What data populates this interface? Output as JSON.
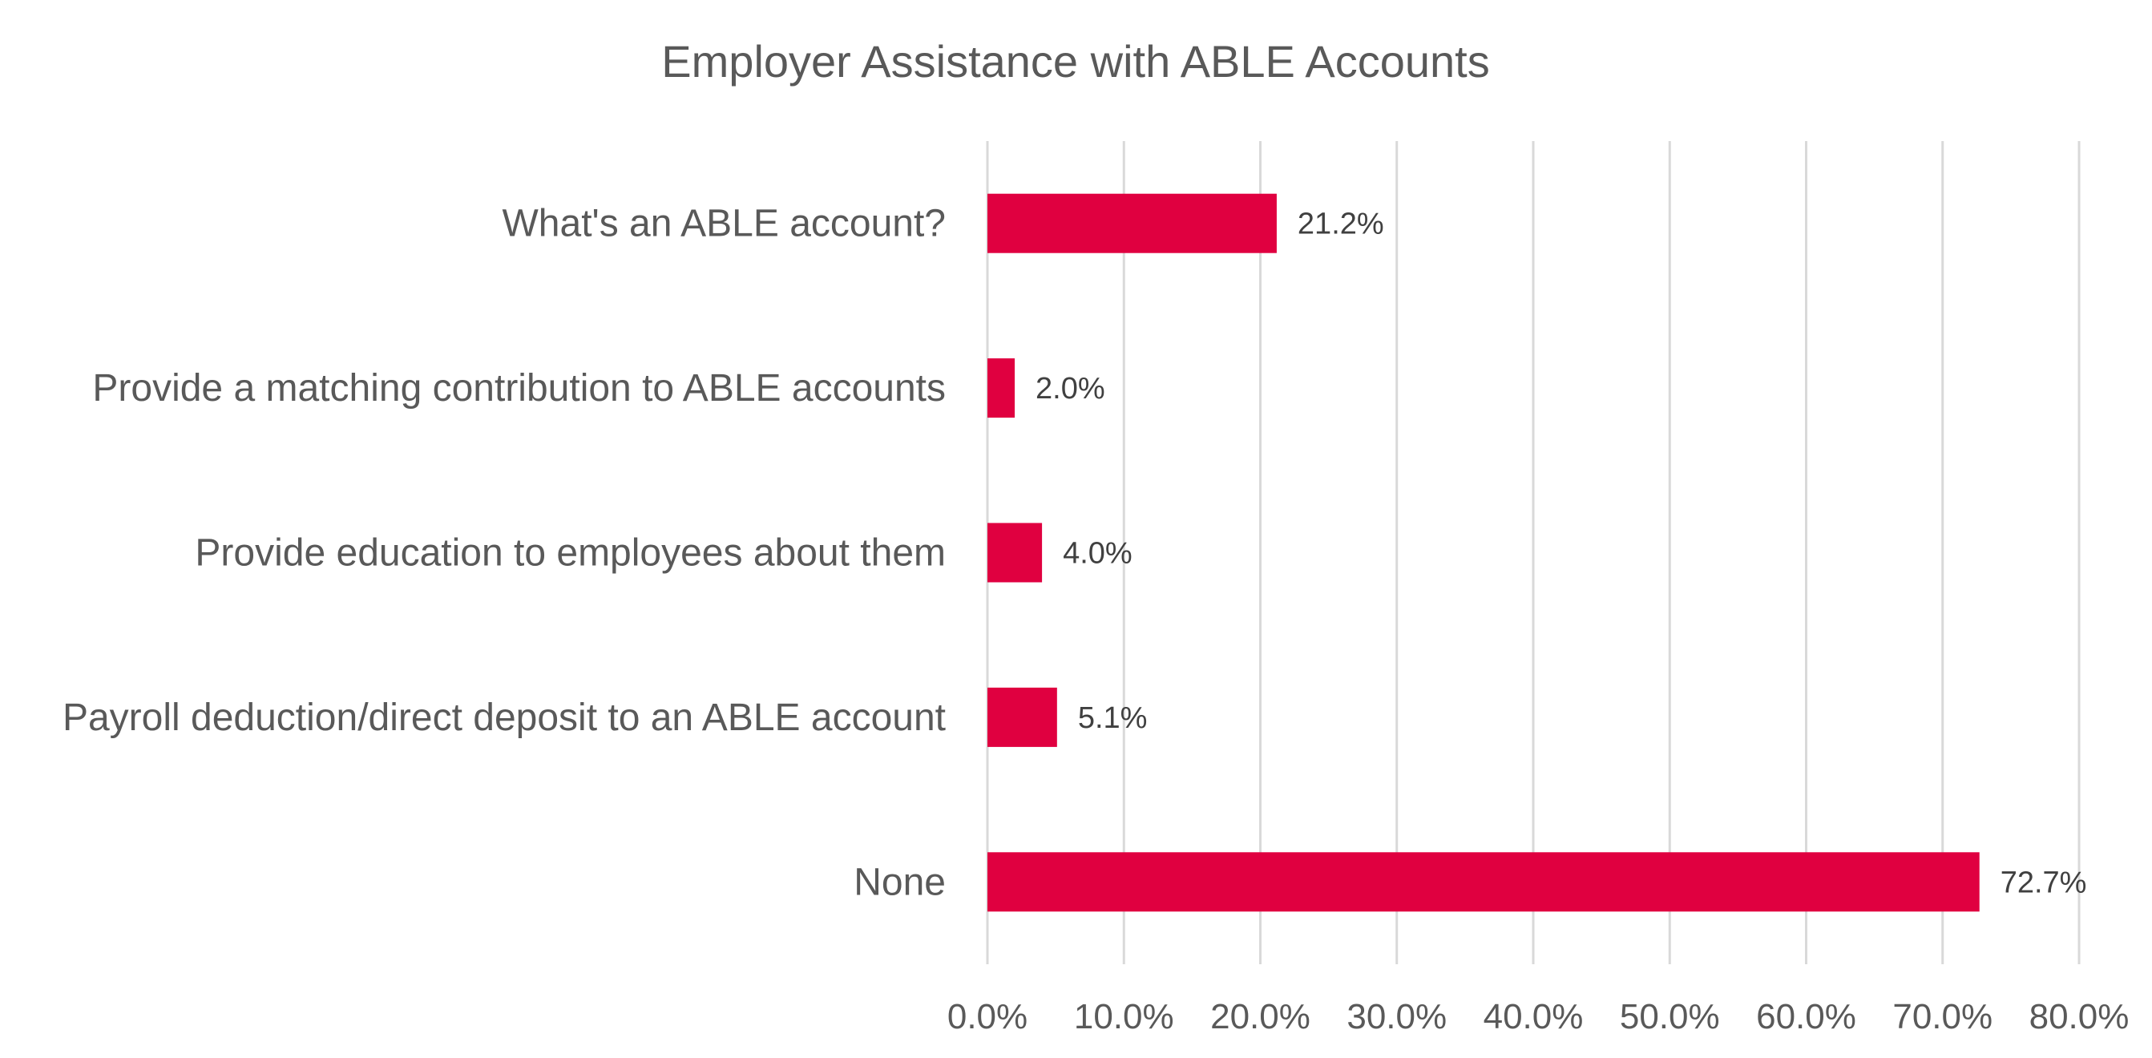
{
  "chart_data": {
    "type": "bar",
    "orientation": "horizontal",
    "title": "Employer Assistance with ABLE Accounts",
    "categories": [
      "What's an ABLE account?",
      "Provide a matching contribution to ABLE accounts",
      "Provide education to employees about them",
      "Payroll deduction/direct deposit to an ABLE account",
      "None"
    ],
    "values": [
      21.2,
      2.0,
      4.0,
      5.1,
      72.7
    ],
    "data_labels": [
      "21.2%",
      "2.0%",
      "4.0%",
      "5.1%",
      "72.7%"
    ],
    "xlim": [
      0,
      80
    ],
    "x_ticks": [
      0,
      10,
      20,
      30,
      40,
      50,
      60,
      70,
      80
    ],
    "x_tick_labels": [
      "0.0%",
      "10.0%",
      "20.0%",
      "30.0%",
      "40.0%",
      "50.0%",
      "60.0%",
      "70.0%",
      "80.0%"
    ],
    "grid": true,
    "legend": false,
    "colors": {
      "bar": "#e00040",
      "grid": "#d9d9d9",
      "text": "#595959"
    }
  }
}
